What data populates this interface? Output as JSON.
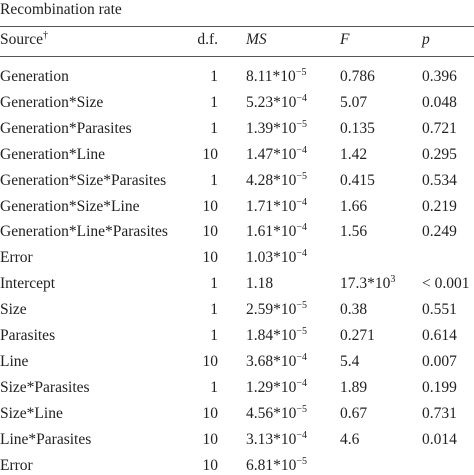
{
  "title": "Recombination rate",
  "source_mark": "†",
  "header": [
    "Source",
    "d.f.",
    "MS",
    "F",
    "p"
  ],
  "rows": [
    [
      "Generation",
      "1",
      {
        "base": "8.11*10",
        "exp": "−5"
      },
      "0.786",
      "0.396"
    ],
    [
      "Generation*Size",
      "1",
      {
        "base": "5.23*10",
        "exp": "−4"
      },
      "5.07",
      "0.048"
    ],
    [
      "Generation*Parasites",
      "1",
      {
        "base": "1.39*10",
        "exp": "−5"
      },
      "0.135",
      "0.721"
    ],
    [
      "Generation*Line",
      "10",
      {
        "base": "1.47*10",
        "exp": "−4"
      },
      "1.42",
      "0.295"
    ],
    [
      "Generation*Size*Parasites",
      "1",
      {
        "base": "4.28*10",
        "exp": "−5"
      },
      "0.415",
      "0.534"
    ],
    [
      "Generation*Size*Line",
      "10",
      {
        "base": "1.71*10",
        "exp": "−4"
      },
      "1.66",
      "0.219"
    ],
    [
      "Generation*Line*Parasites",
      "10",
      {
        "base": "1.61*10",
        "exp": "−4"
      },
      "1.56",
      "0.249"
    ],
    [
      "Error",
      "10",
      {
        "base": "1.03*10",
        "exp": "−4"
      }
    ],
    [
      "Intercept",
      "1",
      "1.18",
      {
        "base": "17.3*10",
        "exp": "3"
      },
      "< 0.001"
    ],
    [
      "Size",
      "1",
      {
        "base": "2.59*10",
        "exp": "−5"
      },
      "0.38",
      "0.551"
    ],
    [
      "Parasites",
      "1",
      {
        "base": "1.84*10",
        "exp": "−5"
      },
      "0.271",
      "0.614"
    ],
    [
      "Line",
      "10",
      {
        "base": "3.68*10",
        "exp": "−4"
      },
      "5.4",
      "0.007"
    ],
    [
      "Size*Parasites",
      "1",
      {
        "base": "1.29*10",
        "exp": "−4"
      },
      "1.89",
      "0.199"
    ],
    [
      "Size*Line",
      "10",
      {
        "base": "4.56*10",
        "exp": "−5"
      },
      "0.67",
      "0.731"
    ],
    [
      "Line*Parasites",
      "10",
      {
        "base": "3.13*10",
        "exp": "−4"
      },
      "4.6",
      "0.014"
    ],
    [
      "Error",
      "10",
      {
        "base": "6.81*10",
        "exp": "−5"
      }
    ]
  ]
}
